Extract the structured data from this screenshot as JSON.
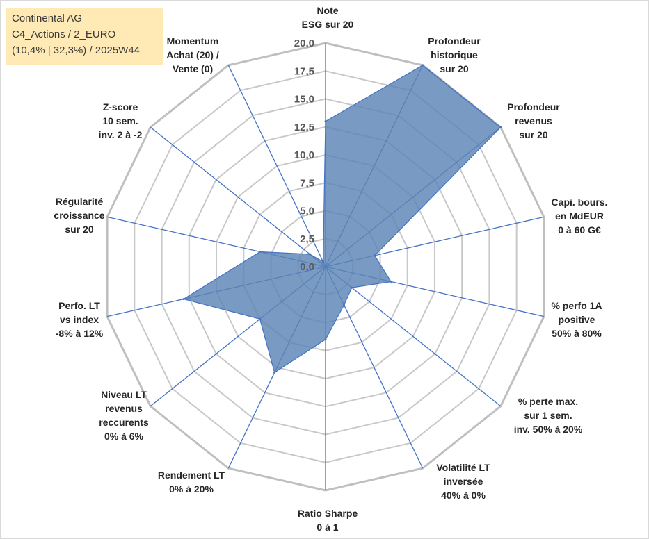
{
  "header": {
    "line1": "Continental AG",
    "line2": "C4_Actions / 2_EURO",
    "line3": "(10,4% | 32,3%) / 2025W44"
  },
  "chart_data": {
    "type": "radar",
    "title": "Continental AG",
    "subtitle": "C4_Actions / 2_EURO (10,4% | 32,3%) / 2025W44",
    "rlim": [
      0,
      20
    ],
    "ticks": [
      0,
      2.5,
      5,
      7.5,
      10,
      12.5,
      15,
      17.5,
      20
    ],
    "tick_labels": [
      "0,0",
      "2,5",
      "5,0",
      "7,5",
      "10,0",
      "12,5",
      "15,0",
      "17,5",
      "20,0"
    ],
    "grid": true,
    "categories": [
      [
        "Note",
        "ESG sur 20"
      ],
      [
        "Profondeur",
        "historique",
        "sur 20"
      ],
      [
        "Profondeur",
        "revenus",
        "sur 20"
      ],
      [
        "Capi. bours.",
        "en MdEUR",
        "0 à 60 G€"
      ],
      [
        "% perfo 1A",
        "positive",
        "50% à 80%"
      ],
      [
        "% perte max.",
        "sur 1 sem.",
        "inv. 50% à 20%"
      ],
      [
        "Volatilité LT",
        "inversée",
        "40% à 0%"
      ],
      [
        "Ratio Sharpe",
        "0 à 1"
      ],
      [
        "Rendement LT",
        "0% à 20%"
      ],
      [
        "Niveau LT",
        "revenus",
        "reccurents",
        "0% à 6%"
      ],
      [
        "Perfo. LT",
        "vs index",
        "-8% à 12%"
      ],
      [
        "Régularité",
        "croissance",
        "sur 20"
      ],
      [
        "Z-score",
        "10 sem.",
        "inv. 2 à -2"
      ],
      [
        "Momentum",
        "Achat (20) /",
        "Vente (0)"
      ]
    ],
    "series": [
      {
        "values": [
          13.0,
          20.0,
          20.0,
          4.5,
          6.0,
          3.0,
          3.8,
          6.5,
          10.5,
          7.5,
          13.0,
          6.0,
          1.8,
          0.5
        ]
      }
    ],
    "colors": {
      "fill": "#5b84b5",
      "line": "#4472c4",
      "grid": "#bfbfbf",
      "axis": "#4472c4"
    }
  }
}
